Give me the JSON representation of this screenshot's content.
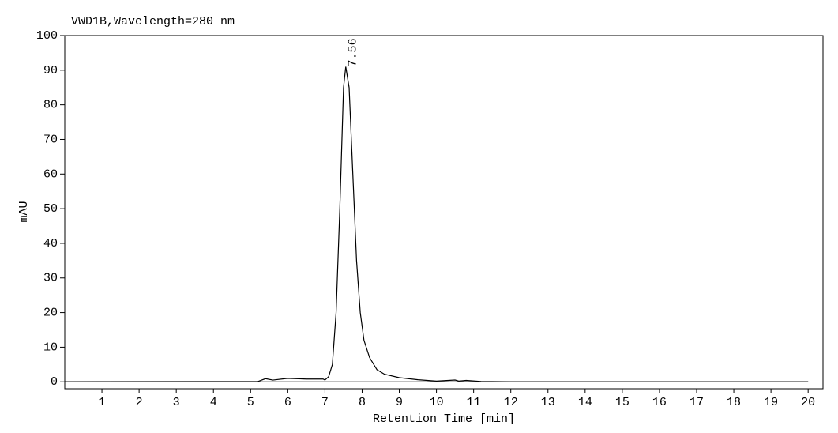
{
  "chart_data": {
    "type": "line",
    "title": "VWD1B,Wavelength=280 nm",
    "x_label": "Retention Time [min]",
    "y_label": "mAU",
    "xlim": [
      0,
      20.4
    ],
    "ylim": [
      -2,
      100
    ],
    "xticks": [
      1,
      2,
      3,
      4,
      5,
      6,
      7,
      8,
      9,
      10,
      11,
      12,
      13,
      14,
      15,
      16,
      17,
      18,
      19,
      20
    ],
    "yticks": [
      0,
      10,
      20,
      30,
      40,
      50,
      60,
      70,
      80,
      90,
      100
    ],
    "grid": false,
    "series": [
      {
        "name": "VWD1B",
        "color": "#000000",
        "x": [
          0,
          5.2,
          5.4,
          5.6,
          6.0,
          6.5,
          6.95,
          7.0,
          7.1,
          7.2,
          7.3,
          7.4,
          7.5,
          7.56,
          7.65,
          7.75,
          7.85,
          7.95,
          8.05,
          8.2,
          8.4,
          8.6,
          9.0,
          9.5,
          10.0,
          10.5,
          10.6,
          10.8,
          11.2,
          12.0,
          20.0
        ],
        "values": [
          0,
          0.1,
          0.9,
          0.5,
          1.0,
          0.8,
          0.8,
          0.5,
          1.5,
          5,
          20,
          50,
          85,
          91,
          85,
          60,
          35,
          20,
          12,
          7,
          3.5,
          2.2,
          1.2,
          0.6,
          0.2,
          0.5,
          0.2,
          0.4,
          0.1,
          0,
          0
        ]
      }
    ],
    "annotations": [
      {
        "text": "7.56",
        "x": 7.56,
        "y": 91
      }
    ]
  }
}
